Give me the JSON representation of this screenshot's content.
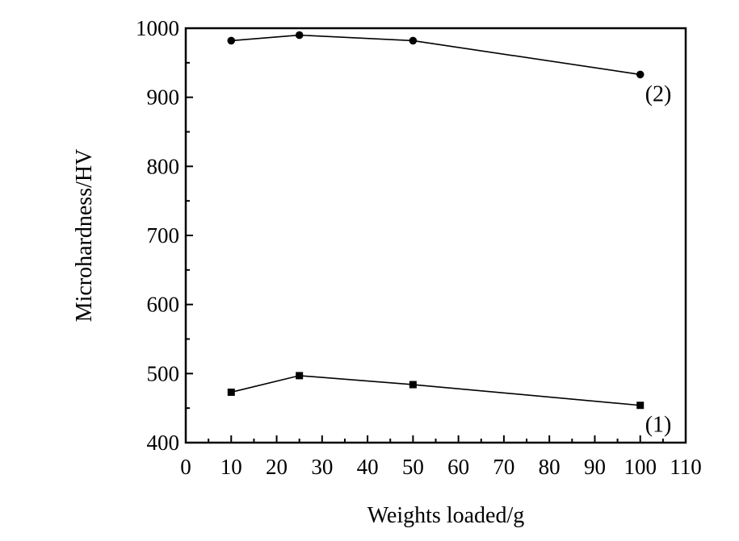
{
  "chart_data": {
    "type": "line",
    "title": "",
    "xlabel": "Weights loaded/g",
    "ylabel": "Microhardness/HV",
    "xlim": [
      0,
      110
    ],
    "ylim": [
      400,
      1000
    ],
    "x_ticks": [
      "0",
      "10",
      "20",
      "30",
      "40",
      "50",
      "60",
      "70",
      "80",
      "90",
      "100",
      "110"
    ],
    "y_ticks": [
      "400",
      "500",
      "600",
      "700",
      "800",
      "900",
      "1000"
    ],
    "grid": false,
    "legend": "none",
    "series": [
      {
        "name": "(1)",
        "marker": "square",
        "x": [
          10,
          25,
          50,
          100
        ],
        "values": [
          473,
          497,
          484,
          454
        ]
      },
      {
        "name": "(2)",
        "marker": "circle",
        "x": [
          10,
          25,
          50,
          100
        ],
        "values": [
          982,
          990,
          982,
          933
        ]
      }
    ]
  }
}
